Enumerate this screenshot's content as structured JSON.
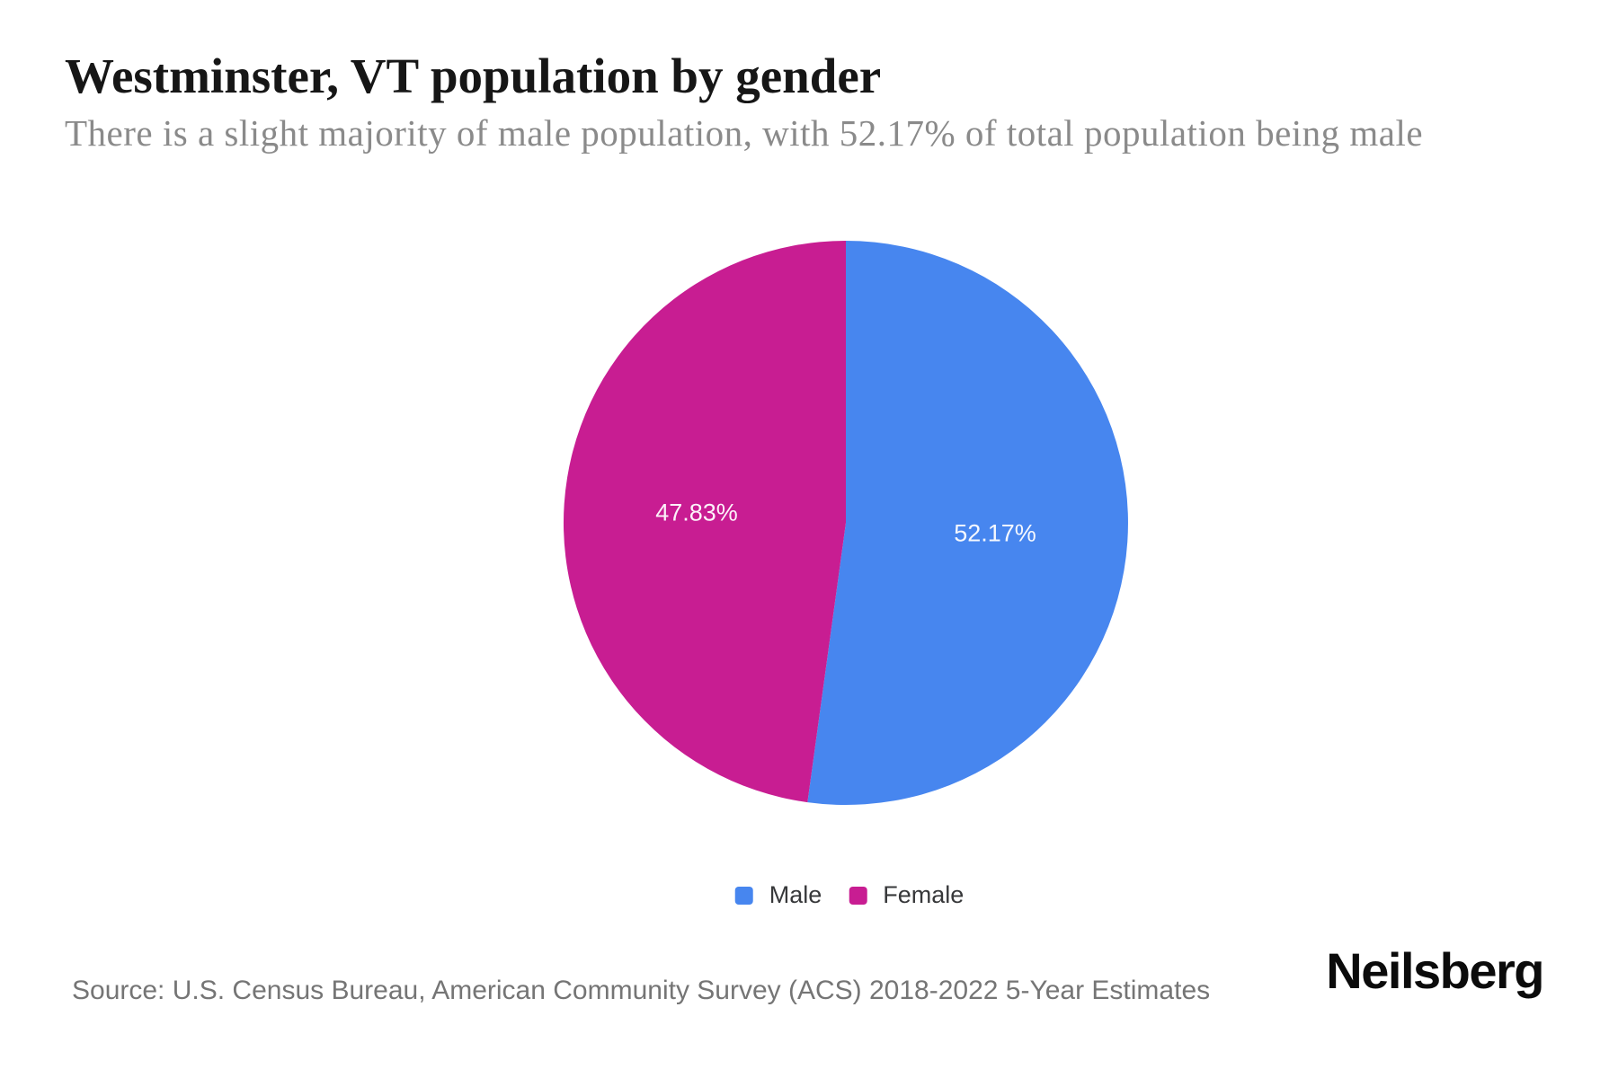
{
  "page": {
    "background": "#ffffff"
  },
  "header": {
    "title": "Westminster, VT population by gender",
    "subtitle": "There is a slight majority of male population, with 52.17% of total population being male"
  },
  "chart_data": {
    "type": "pie",
    "title": "Westminster, VT population by gender",
    "series": [
      {
        "name": "Male",
        "value": 52.17,
        "label": "52.17%",
        "color": "#4786EF"
      },
      {
        "name": "Female",
        "value": 47.83,
        "label": "47.83%",
        "color": "#C81D92"
      }
    ],
    "start_angle_deg": 0,
    "direction": "clockwise",
    "data_label_color": "#ffffff",
    "data_label_radius_ratio": 0.53,
    "legend_position": "bottom"
  },
  "footer": {
    "source": "Source: U.S. Census Bureau, American Community Survey (ACS) 2018-2022 5-Year Estimates",
    "brand": "Neilsberg"
  }
}
